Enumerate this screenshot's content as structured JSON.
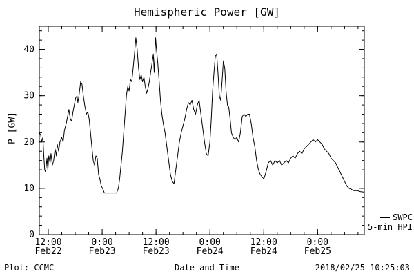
{
  "legend": {
    "line1": "SWPC",
    "line2": "5-min HPI"
  },
  "footer": {
    "left": "Plot: CCMC",
    "center": "Date and Time",
    "right": "2018/02/25 10:25:03"
  },
  "chart_data": {
    "type": "line",
    "title": "Hemispheric Power [GW]",
    "xlabel": "Date and Time",
    "ylabel": "P [GW]",
    "ylim": [
      0,
      45
    ],
    "xlim_hours": [
      10,
      82.4
    ],
    "x_unit": "hours since 2018-02-22 00:00 UT",
    "grid": false,
    "legend_position": "right-outside",
    "yticks": [
      0,
      10,
      20,
      30,
      40
    ],
    "y_minor_step": 2,
    "x_minor_step": 3,
    "xticks": [
      {
        "pos": 12,
        "time": "12:00",
        "date": "Feb22"
      },
      {
        "pos": 24,
        "time": "0:00",
        "date": "Feb23"
      },
      {
        "pos": 36,
        "time": "12:00",
        "date": "Feb23"
      },
      {
        "pos": 48,
        "time": "0:00",
        "date": "Feb24"
      },
      {
        "pos": 60,
        "time": "12:00",
        "date": "Feb24"
      },
      {
        "pos": 72,
        "time": "0:00",
        "date": "Feb25"
      }
    ],
    "series": [
      {
        "name": "SWPC 5-min HPI",
        "color": "#000000",
        "points": [
          [
            10.0,
            22
          ],
          [
            10.3,
            21.5
          ],
          [
            10.5,
            20
          ],
          [
            10.8,
            21
          ],
          [
            11.0,
            17
          ],
          [
            11.2,
            14
          ],
          [
            11.4,
            13.5
          ],
          [
            11.7,
            16.5
          ],
          [
            11.9,
            14
          ],
          [
            12.1,
            17
          ],
          [
            12.4,
            15.5
          ],
          [
            12.6,
            17.5
          ],
          [
            12.9,
            15
          ],
          [
            13.2,
            16
          ],
          [
            13.5,
            18.5
          ],
          [
            13.8,
            17
          ],
          [
            14.0,
            19.5
          ],
          [
            14.3,
            18
          ],
          [
            14.6,
            20
          ],
          [
            15.0,
            21
          ],
          [
            15.3,
            20
          ],
          [
            15.6,
            22.5
          ],
          [
            16.0,
            24
          ],
          [
            16.3,
            25.5
          ],
          [
            16.6,
            27
          ],
          [
            16.9,
            25
          ],
          [
            17.2,
            24.5
          ],
          [
            17.5,
            26.5
          ],
          [
            17.8,
            28
          ],
          [
            18.1,
            29.5
          ],
          [
            18.4,
            30
          ],
          [
            18.6,
            28.5
          ],
          [
            18.9,
            30.5
          ],
          [
            19.2,
            33
          ],
          [
            19.5,
            32.5
          ],
          [
            19.8,
            30
          ],
          [
            20.1,
            28
          ],
          [
            20.5,
            26
          ],
          [
            20.8,
            26.5
          ],
          [
            21.1,
            25
          ],
          [
            21.4,
            22
          ],
          [
            21.7,
            19
          ],
          [
            22.0,
            16
          ],
          [
            22.3,
            15
          ],
          [
            22.6,
            17
          ],
          [
            22.9,
            16.5
          ],
          [
            23.2,
            13
          ],
          [
            23.5,
            12
          ],
          [
            23.8,
            10.5
          ],
          [
            24.1,
            10
          ],
          [
            24.5,
            9
          ],
          [
            25.5,
            9
          ],
          [
            26.5,
            9
          ],
          [
            27.2,
            9
          ],
          [
            27.6,
            10
          ],
          [
            27.9,
            12
          ],
          [
            28.2,
            15
          ],
          [
            28.5,
            18
          ],
          [
            28.8,
            22
          ],
          [
            29.1,
            26
          ],
          [
            29.4,
            30
          ],
          [
            29.7,
            32
          ],
          [
            30.0,
            31
          ],
          [
            30.3,
            33.5
          ],
          [
            30.6,
            33
          ],
          [
            30.9,
            36
          ],
          [
            31.2,
            39
          ],
          [
            31.5,
            42.5
          ],
          [
            31.8,
            40
          ],
          [
            32.1,
            36
          ],
          [
            32.4,
            33.5
          ],
          [
            32.7,
            34.5
          ],
          [
            33.0,
            33
          ],
          [
            33.3,
            34
          ],
          [
            33.6,
            32
          ],
          [
            33.9,
            30.5
          ],
          [
            34.2,
            31.5
          ],
          [
            34.5,
            33
          ],
          [
            34.8,
            35
          ],
          [
            35.1,
            37
          ],
          [
            35.4,
            39
          ],
          [
            35.6,
            35
          ],
          [
            35.9,
            42.5
          ],
          [
            36.1,
            40
          ],
          [
            36.4,
            37
          ],
          [
            36.7,
            33
          ],
          [
            37.0,
            29
          ],
          [
            37.3,
            26
          ],
          [
            37.6,
            24
          ],
          [
            38.0,
            22
          ],
          [
            38.4,
            19
          ],
          [
            38.8,
            16
          ],
          [
            39.2,
            13
          ],
          [
            39.6,
            11.5
          ],
          [
            40.0,
            11
          ],
          [
            40.4,
            14
          ],
          [
            40.8,
            17
          ],
          [
            41.2,
            20
          ],
          [
            41.6,
            22
          ],
          [
            42.0,
            23.5
          ],
          [
            42.4,
            25
          ],
          [
            42.8,
            27
          ],
          [
            43.2,
            28.5
          ],
          [
            43.6,
            28
          ],
          [
            44.0,
            29
          ],
          [
            44.4,
            27
          ],
          [
            44.8,
            26
          ],
          [
            45.2,
            28
          ],
          [
            45.6,
            29
          ],
          [
            46.0,
            26
          ],
          [
            46.4,
            23
          ],
          [
            46.8,
            20
          ],
          [
            47.2,
            17.5
          ],
          [
            47.6,
            17
          ],
          [
            48.0,
            20
          ],
          [
            48.3,
            25
          ],
          [
            48.6,
            31
          ],
          [
            48.9,
            35
          ],
          [
            49.2,
            38.5
          ],
          [
            49.5,
            39
          ],
          [
            49.8,
            35
          ],
          [
            50.1,
            30
          ],
          [
            50.4,
            29
          ],
          [
            50.7,
            33
          ],
          [
            51.0,
            37.5
          ],
          [
            51.3,
            36
          ],
          [
            51.6,
            31
          ],
          [
            51.9,
            28
          ],
          [
            52.2,
            27.5
          ],
          [
            52.5,
            25
          ],
          [
            52.8,
            22
          ],
          [
            53.2,
            21
          ],
          [
            53.6,
            20.5
          ],
          [
            54.0,
            21
          ],
          [
            54.4,
            20
          ],
          [
            54.8,
            22
          ],
          [
            55.2,
            25.5
          ],
          [
            55.6,
            26
          ],
          [
            56.0,
            25.5
          ],
          [
            56.4,
            26
          ],
          [
            56.8,
            26
          ],
          [
            57.2,
            24
          ],
          [
            57.6,
            21
          ],
          [
            58.0,
            19
          ],
          [
            58.4,
            16
          ],
          [
            58.8,
            14
          ],
          [
            59.2,
            13
          ],
          [
            59.6,
            12.5
          ],
          [
            60.0,
            12
          ],
          [
            60.5,
            13.5
          ],
          [
            61.0,
            15.5
          ],
          [
            61.5,
            16
          ],
          [
            62.0,
            15
          ],
          [
            62.5,
            16
          ],
          [
            63.0,
            15.5
          ],
          [
            63.5,
            16
          ],
          [
            64.0,
            15
          ],
          [
            64.5,
            15.5
          ],
          [
            65.0,
            16
          ],
          [
            65.5,
            15.5
          ],
          [
            66.0,
            16.5
          ],
          [
            66.5,
            17
          ],
          [
            67.0,
            16.5
          ],
          [
            67.5,
            17.5
          ],
          [
            68.0,
            18
          ],
          [
            68.5,
            17.5
          ],
          [
            69.0,
            18.5
          ],
          [
            69.5,
            19
          ],
          [
            70.0,
            19.5
          ],
          [
            70.5,
            20
          ],
          [
            71.0,
            20.5
          ],
          [
            71.5,
            20
          ],
          [
            72.0,
            20.5
          ],
          [
            72.5,
            20
          ],
          [
            73.0,
            19.5
          ],
          [
            73.5,
            18.5
          ],
          [
            74.0,
            18
          ],
          [
            74.5,
            17.5
          ],
          [
            75.0,
            16.5
          ],
          [
            75.5,
            16
          ],
          [
            76.0,
            15.5
          ],
          [
            76.5,
            14.5
          ],
          [
            77.0,
            13.5
          ],
          [
            77.5,
            12.5
          ],
          [
            78.0,
            11.5
          ],
          [
            78.5,
            10.5
          ],
          [
            79.0,
            10
          ],
          [
            79.5,
            9.8
          ],
          [
            80.0,
            9.5
          ],
          [
            80.8,
            9.5
          ],
          [
            81.5,
            9.3
          ],
          [
            82.2,
            9.2
          ]
        ]
      }
    ]
  }
}
